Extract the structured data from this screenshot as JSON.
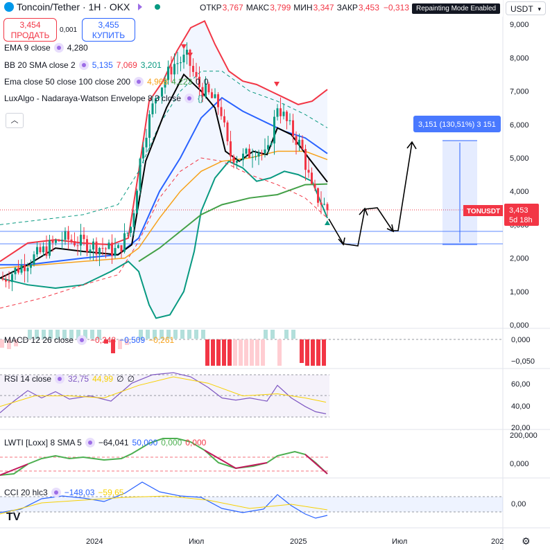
{
  "header": {
    "symbol_icon": "ton-diamond-icon",
    "symbol": "Toncoin/Tether · 1H · OKX",
    "ohlc": [
      {
        "label": "ОТКР",
        "value": "3,767"
      },
      {
        "label": "МАКС",
        "value": "3,799"
      },
      {
        "label": "МИН",
        "value": "3,347"
      },
      {
        "label": "ЗАКР",
        "value": "3,453"
      },
      {
        "label": "",
        "value": "−0,313 (−8,31%)"
      }
    ],
    "repainting_badge": "Repainting Mode Enabled",
    "currency": "USDT"
  },
  "trade": {
    "sell_price": "3,454",
    "sell_label": "ПРОДАТЬ",
    "spread": "0,001",
    "buy_price": "3,455",
    "buy_label": "КУПИТЬ"
  },
  "indicators": [
    {
      "name": "EMA 9 close",
      "values": [
        {
          "v": "4,280",
          "c": "#131722"
        }
      ]
    },
    {
      "name": "BB 20 SMA close 2",
      "values": [
        {
          "v": "5,135",
          "c": "#2962ff"
        },
        {
          "v": "7,069",
          "c": "#f23645"
        },
        {
          "v": "3,201",
          "c": "#089981"
        }
      ]
    },
    {
      "name": "Ema close 50 close 100 close 200",
      "values": [
        {
          "v": "4,968",
          "c": "#f7a21b"
        },
        {
          "v": "4,223",
          "c": "#43a047"
        },
        {
          "v": "0",
          "c": "#131722"
        },
        {
          "v": "0",
          "c": "#131722"
        }
      ]
    },
    {
      "name": "LuxAlgo - Nadaraya-Watson Envelope 8 3 close",
      "values": [
        {
          "v": "{}",
          "c": "#089981"
        }
      ]
    }
  ],
  "sub_indicators": {
    "macd": {
      "name": "MACD 12 26 close",
      "values": [
        {
          "v": "−0,248",
          "c": "#f23645"
        },
        {
          "v": "−0,509",
          "c": "#2962ff"
        },
        {
          "v": "−0,261",
          "c": "#f7a21b"
        }
      ]
    },
    "rsi": {
      "name": "RSI 14 close",
      "values": [
        {
          "v": "32,75",
          "c": "#7e57c2"
        },
        {
          "v": "44,99",
          "c": "#f7d000"
        },
        {
          "v": "∅",
          "c": "#131722"
        },
        {
          "v": "∅",
          "c": "#131722"
        }
      ]
    },
    "lwti": {
      "name": "LWTI [Loxx] 8 SMA 5",
      "values": [
        {
          "v": "−64,041",
          "c": "#131722"
        },
        {
          "v": "50,000",
          "c": "#2962ff"
        },
        {
          "v": "0,000",
          "c": "#4caf50"
        },
        {
          "v": "0,000",
          "c": "#f23645"
        }
      ]
    },
    "cci": {
      "name": "CCI 20 hlc3",
      "values": [
        {
          "v": "−148,03",
          "c": "#2962ff"
        },
        {
          "v": "−59,65",
          "c": "#f7d000"
        }
      ]
    }
  },
  "chart_data": {
    "type": "candlestick",
    "price_axis": {
      "ticks": [
        "9,000",
        "8,000",
        "7,000",
        "6,000",
        "5,000",
        "4,000",
        "3,000",
        "2,000",
        "1,000",
        "0,000"
      ]
    },
    "time_axis": {
      "ticks": [
        "2024",
        "Июл",
        "2025",
        "Июл",
        "202"
      ]
    },
    "last_price_label": {
      "symbol": "TONUSDT",
      "price": "3,453",
      "countdown": "5d 18h"
    },
    "measure_label": "3,151 (130,51%) 3 151",
    "macd_axis": {
      "ticks": [
        "0,000",
        "−0,050"
      ]
    },
    "rsi_axis": {
      "ticks": [
        "60,00",
        "40,00",
        "20,00"
      ]
    },
    "lwti_axis": {
      "ticks": [
        "200,000",
        "0,000"
      ]
    },
    "cci_axis": {
      "ticks": [
        "0,00"
      ]
    },
    "colors": {
      "up": "#089981",
      "down": "#f23645",
      "bb_basis": "#2962ff",
      "bb_upper": "#f23645",
      "bb_lower": "#089981",
      "ema9": "#000000",
      "ema50": "#f7a21b",
      "ema100": "#43a047"
    }
  },
  "footer": {
    "logo": "TV",
    "settings_icon": "settings-gear-icon"
  }
}
